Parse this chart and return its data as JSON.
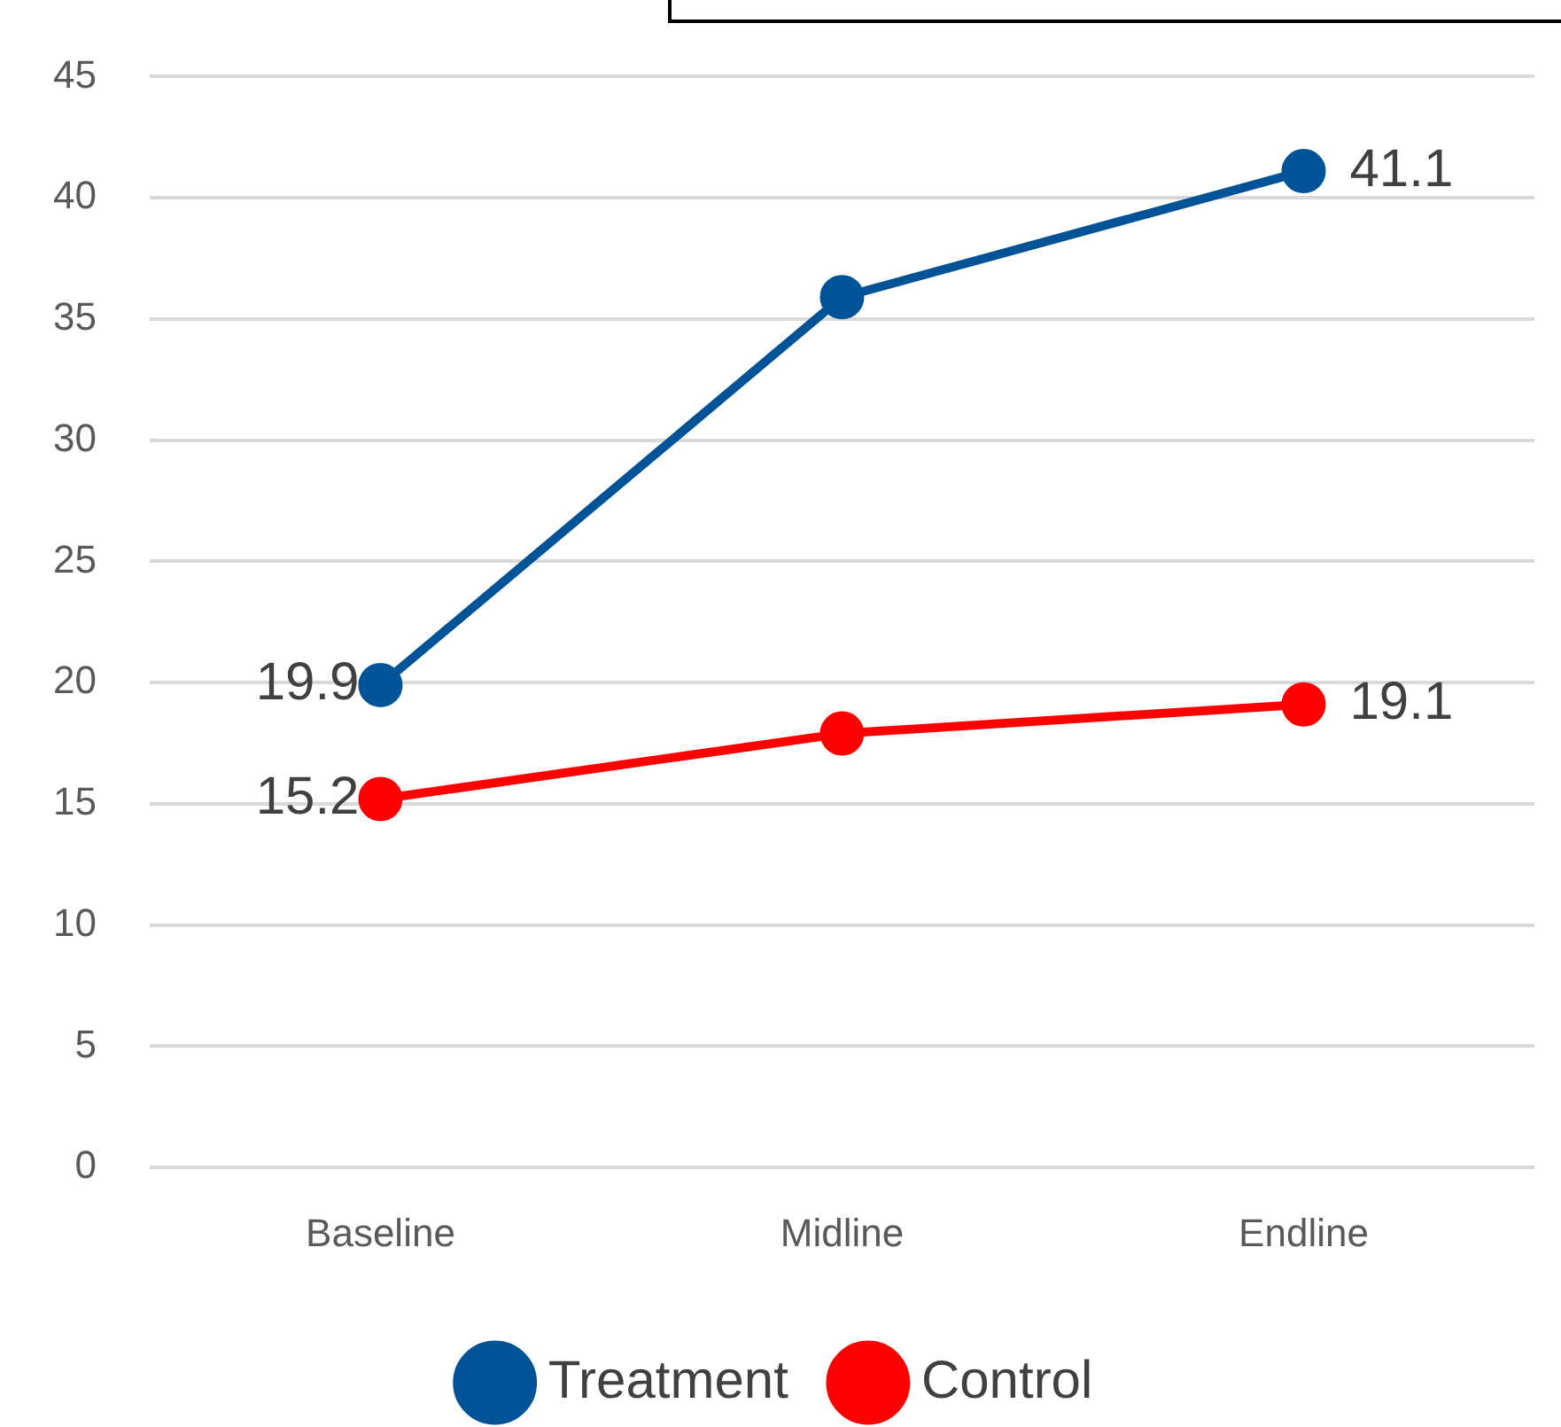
{
  "chart_data": {
    "type": "line",
    "categories": [
      "Baseline",
      "Midline",
      "Endline"
    ],
    "series": [
      {
        "name": "Treatment",
        "color": "#005397",
        "values": [
          19.9,
          35.9,
          41.1
        ],
        "value_labels": [
          "19.9",
          null,
          "41.1"
        ]
      },
      {
        "name": "Control",
        "color": "#ff0000",
        "values": [
          15.2,
          17.9,
          19.1
        ],
        "value_labels": [
          "15.2",
          null,
          "19.1"
        ]
      }
    ],
    "ylim": [
      0,
      45
    ],
    "yticks": [
      0,
      5,
      10,
      15,
      20,
      25,
      30,
      35,
      40,
      45
    ],
    "grid": "y",
    "legend": "bottom",
    "marker": "circle",
    "line_style": "solid"
  }
}
